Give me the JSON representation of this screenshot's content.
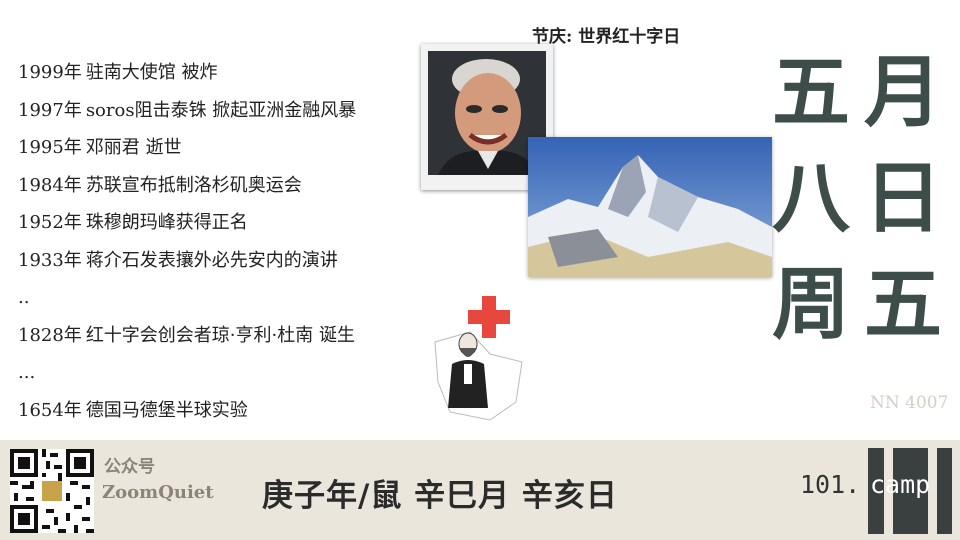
{
  "festival": {
    "label": "节庆:",
    "value": "世界红十字日"
  },
  "big_date": {
    "left_col": [
      "五",
      "八",
      "周"
    ],
    "right_col": [
      "月",
      "日",
      "五"
    ]
  },
  "events": [
    {
      "year": "1999年",
      "text": "驻南大使馆 被炸"
    },
    {
      "year": "1997年",
      "text": "soros阻击泰铢 掀起亚洲金融风暴"
    },
    {
      "year": "1995年",
      "text": "邓丽君 逝世"
    },
    {
      "year": "1984年",
      "text": "苏联宣布抵制洛杉矶奥运会"
    },
    {
      "year": "1952年",
      "text": "珠穆朗玛峰获得正名"
    },
    {
      "year": "1933年",
      "text": "蒋介石发表攘外必先安内的演讲"
    },
    {
      "year": "",
      "text": ".."
    },
    {
      "year": "1828年",
      "text": "红十字会创会者琼·亨利·杜南 诞生"
    },
    {
      "year": "",
      "text": "..."
    },
    {
      "year": "1654年",
      "text": "德国马德堡半球实验"
    }
  ],
  "serial": "NN 4007",
  "footer": {
    "account_label": "公众号",
    "account_name": "ZoomQuiet",
    "ganzhi": "庚子年/鼠 辛巳月 辛亥日",
    "brand_prefix": "101.",
    "brand_suffix": "camp"
  },
  "colors": {
    "footer_bg": "#ebe6dc",
    "big_date": "#3d4d4a",
    "red_cross": "#e8473d",
    "logo": "#3a3f40"
  },
  "icons": [
    "red-cross-icon",
    "qr-code",
    "portrait-photo",
    "mountain-photo",
    "brand-logo"
  ]
}
